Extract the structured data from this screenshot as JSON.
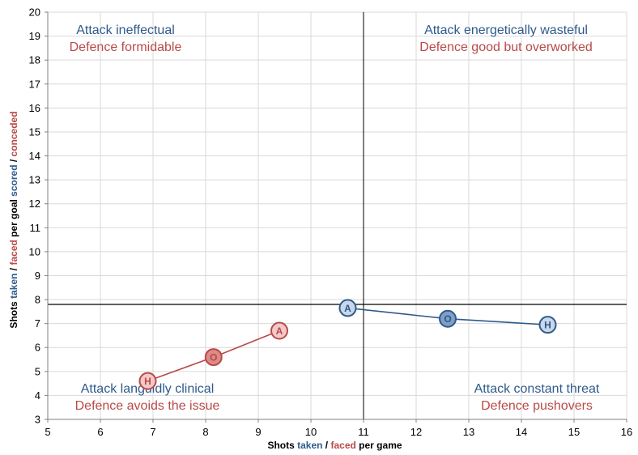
{
  "chart_data": {
    "type": "scatter",
    "xlim": [
      5,
      16
    ],
    "ylim": [
      3,
      20
    ],
    "xticks": [
      5,
      6,
      7,
      8,
      9,
      10,
      11,
      12,
      13,
      14,
      15,
      16
    ],
    "yticks": [
      3,
      4,
      5,
      6,
      7,
      8,
      9,
      10,
      11,
      12,
      13,
      14,
      15,
      16,
      17,
      18,
      19,
      20
    ],
    "grid": "vertical and horizontal",
    "xlabel": {
      "parts": [
        {
          "text": "Shots ",
          "color": "#000000"
        },
        {
          "text": "taken",
          "color": "#2E5A8C"
        },
        {
          "text": " / ",
          "color": "#000000"
        },
        {
          "text": "faced",
          "color": "#B84A48"
        },
        {
          "text": " per game",
          "color": "#000000"
        }
      ]
    },
    "ylabel": {
      "parts": [
        {
          "text": "Shots ",
          "color": "#000000"
        },
        {
          "text": "taken",
          "color": "#2E5A8C"
        },
        {
          "text": " / ",
          "color": "#000000"
        },
        {
          "text": "faced",
          "color": "#B84A48"
        },
        {
          "text": " per goal ",
          "color": "#000000"
        },
        {
          "text": "scored",
          "color": "#2E5A8C"
        },
        {
          "text": " / ",
          "color": "#000000"
        },
        {
          "text": "conceded",
          "color": "#B84A48"
        }
      ]
    },
    "reference_lines": {
      "x": 11,
      "y": 7.8
    },
    "quadrant_labels": [
      {
        "position": "top-left",
        "lines": [
          {
            "text": "Attack ineffectual",
            "color": "#2E5A8C"
          },
          {
            "text": "Defence formidable",
            "color": "#B84A48"
          }
        ]
      },
      {
        "position": "top-right",
        "lines": [
          {
            "text": "Attack energetically wasteful",
            "color": "#2E5A8C"
          },
          {
            "text": "Defence good but overworked",
            "color": "#B84A48"
          }
        ]
      },
      {
        "position": "bottom-left",
        "lines": [
          {
            "text": "Attack languidly clinical",
            "color": "#2E5A8C"
          },
          {
            "text": "Defence avoids the issue",
            "color": "#B84A48"
          }
        ]
      },
      {
        "position": "bottom-right",
        "lines": [
          {
            "text": "Attack constant threat",
            "color": "#2E5A8C"
          },
          {
            "text": "Defence pushovers",
            "color": "#B84A48"
          }
        ]
      }
    ],
    "series": [
      {
        "color": "#2E5A8C",
        "points": [
          {
            "label": "A",
            "x": 10.7,
            "y": 7.65,
            "fill": "#C9D7EA"
          },
          {
            "label": "O",
            "x": 12.6,
            "y": 7.2,
            "fill": "#7F9FC6"
          },
          {
            "label": "H",
            "x": 14.5,
            "y": 6.95,
            "fill": "#C9D7EA"
          }
        ]
      },
      {
        "color": "#B84A48",
        "points": [
          {
            "label": "H",
            "x": 6.9,
            "y": 4.6,
            "fill": "#F2C9C8"
          },
          {
            "label": "O",
            "x": 8.15,
            "y": 5.6,
            "fill": "#DD8A88"
          },
          {
            "label": "A",
            "x": 9.4,
            "y": 6.7,
            "fill": "#F2C9C8"
          }
        ]
      }
    ]
  }
}
